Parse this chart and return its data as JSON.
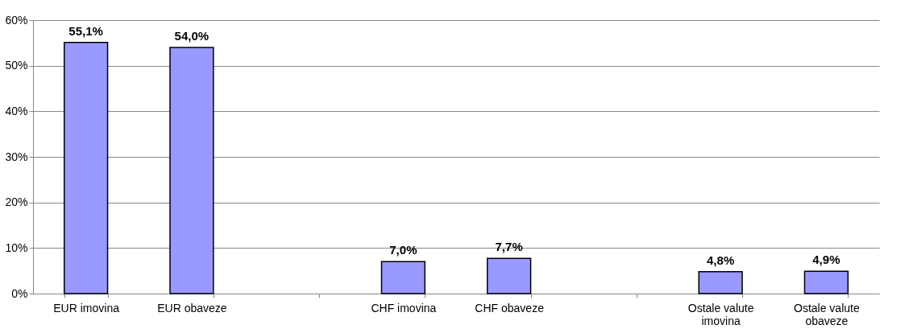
{
  "chart_data": {
    "type": "bar",
    "categories": [
      "EUR imovina",
      "EUR obaveze",
      null,
      "CHF imovina",
      "CHF obaveze",
      null,
      "Ostale valute imovina",
      "Ostale valute obaveze"
    ],
    "values": [
      55.1,
      54.0,
      null,
      7.0,
      7.7,
      null,
      4.8,
      4.9
    ],
    "value_labels": [
      "55,1%",
      "54,0%",
      null,
      "7,0%",
      "7,7%",
      null,
      "4,8%",
      "4,9%"
    ],
    "color": "#9999ff",
    "ylim": [
      0,
      60
    ],
    "yticks": [
      {
        "value": 0,
        "label": "0%"
      },
      {
        "value": 10,
        "label": "10%"
      },
      {
        "value": 20,
        "label": "20%"
      },
      {
        "value": 30,
        "label": "30%"
      },
      {
        "value": 40,
        "label": "40%"
      },
      {
        "value": 50,
        "label": "50%"
      },
      {
        "value": 60,
        "label": "60%"
      }
    ],
    "grid": "y"
  }
}
